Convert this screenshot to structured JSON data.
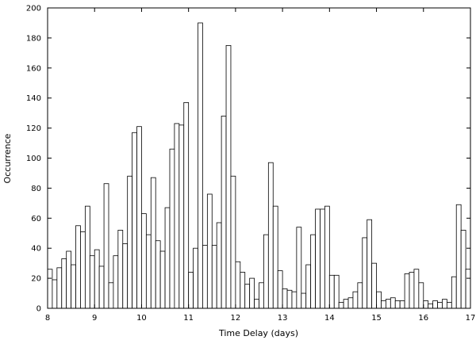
{
  "chart_data": {
    "type": "bar",
    "title": "",
    "xlabel": "Time Delay (days)",
    "ylabel": "Occurrence",
    "xlim": [
      8,
      17
    ],
    "ylim": [
      0,
      200
    ],
    "xticks": [
      8,
      9,
      10,
      11,
      12,
      13,
      14,
      15,
      16,
      17
    ],
    "yticks": [
      0,
      20,
      40,
      60,
      80,
      100,
      120,
      140,
      160,
      180,
      200
    ],
    "grid": false,
    "legend": "none",
    "bar_fill": "#ffffff",
    "bar_stroke": "#000000",
    "bin_width": 0.1,
    "bin_starts": [
      8.0,
      8.1,
      8.2,
      8.3,
      8.4,
      8.5,
      8.6,
      8.7,
      8.8,
      8.9,
      9.0,
      9.1,
      9.2,
      9.3,
      9.4,
      9.5,
      9.6,
      9.7,
      9.8,
      9.9,
      10.0,
      10.1,
      10.2,
      10.3,
      10.4,
      10.5,
      10.6,
      10.7,
      10.8,
      10.9,
      11.0,
      11.1,
      11.2,
      11.3,
      11.4,
      11.5,
      11.6,
      11.7,
      11.8,
      11.9,
      12.0,
      12.1,
      12.2,
      12.3,
      12.4,
      12.5,
      12.6,
      12.7,
      12.8,
      12.9,
      13.0,
      13.1,
      13.2,
      13.3,
      13.4,
      13.5,
      13.6,
      13.7,
      13.8,
      13.9,
      14.0,
      14.1,
      14.2,
      14.3,
      14.4,
      14.5,
      14.6,
      14.7,
      14.8,
      14.9,
      15.0,
      15.1,
      15.2,
      15.3,
      15.4,
      15.5,
      15.6,
      15.7,
      15.8,
      15.9,
      16.0,
      16.1,
      16.2,
      16.3,
      16.4,
      16.5,
      16.6,
      16.7,
      16.8,
      16.9
    ],
    "values": [
      26,
      19,
      27,
      33,
      38,
      29,
      55,
      51,
      68,
      35,
      39,
      28,
      83,
      17,
      35,
      52,
      43,
      88,
      117,
      121,
      63,
      49,
      87,
      45,
      38,
      67,
      106,
      123,
      122,
      137,
      24,
      40,
      190,
      42,
      76,
      42,
      57,
      128,
      175,
      88,
      31,
      24,
      16,
      20,
      6,
      17,
      49,
      97,
      68,
      25,
      13,
      12,
      11,
      54,
      10,
      29,
      49,
      66,
      66,
      68,
      22,
      22,
      4,
      6,
      7,
      11,
      17,
      47,
      59,
      30,
      11,
      5,
      6,
      7,
      5,
      5,
      23,
      24,
      26,
      17,
      5,
      3,
      5,
      4,
      6,
      4,
      21,
      69,
      52,
      26
    ]
  }
}
